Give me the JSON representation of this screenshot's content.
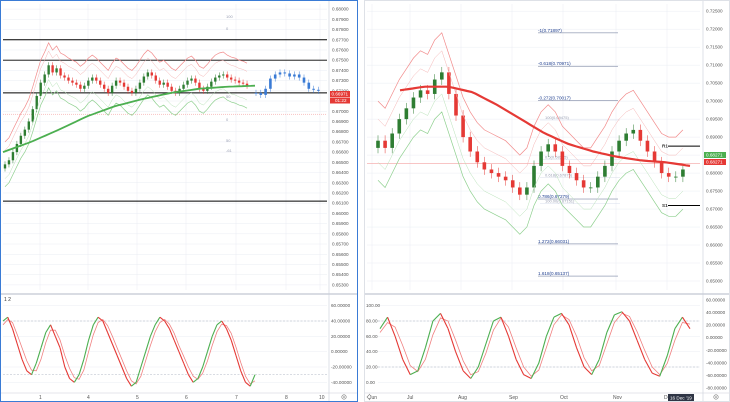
{
  "colors": {
    "candle_up": "#2e7d32",
    "candle_down": "#e53935",
    "candle_blue": "#3a7bd5",
    "ma_green": "#4caf50",
    "ma_red": "#e53935",
    "band_red": "#f28b8b",
    "band_green": "#8fd08f",
    "osc_k": "#4caf50",
    "osc_d": "#f08080",
    "fib": "#1f3f8f",
    "hline": "#000000",
    "grid": "#e4e8f0",
    "border_blue": "#3a7bd5"
  },
  "chart_data": [
    {
      "name": "left-price",
      "type": "line",
      "x_ticks": [
        "1",
        "4",
        "5",
        "6",
        "7",
        "8",
        "10"
      ],
      "y_ticks": [
        "0.68000",
        "0.67900",
        "0.67800",
        "0.67700",
        "0.67600",
        "0.67500",
        "0.67400",
        "0.67300",
        "0.67200",
        "0.67100",
        "0.67000",
        "0.66900",
        "0.66800",
        "0.66700",
        "0.66600",
        "0.66500",
        "0.66400",
        "0.66300",
        "0.66200",
        "0.66100",
        "0.66000",
        "0.65900",
        "0.65800",
        "0.65700",
        "0.65600",
        "0.65500",
        "0.65400",
        "0.65300"
      ],
      "ylim": [
        0.6525,
        0.6805
      ],
      "closes": [
        0.6648,
        0.6652,
        0.666,
        0.6668,
        0.6676,
        0.6682,
        0.669,
        0.6702,
        0.6715,
        0.6728,
        0.6736,
        0.6745,
        0.6738,
        0.6742,
        0.6735,
        0.6733,
        0.673,
        0.6728,
        0.6726,
        0.6722,
        0.6725,
        0.673,
        0.6733,
        0.673,
        0.6726,
        0.6722,
        0.6718,
        0.6725,
        0.673,
        0.6728,
        0.6724,
        0.672,
        0.6718,
        0.6722,
        0.6728,
        0.6734,
        0.6738,
        0.6735,
        0.673,
        0.6726,
        0.6728,
        0.6724,
        0.672,
        0.6718,
        0.6722,
        0.6726,
        0.673,
        0.6732,
        0.6728,
        0.6722,
        0.672,
        0.6724,
        0.6729,
        0.6733,
        0.6735,
        0.6736,
        0.6733,
        0.6731,
        0.673,
        0.6728,
        0.6727,
        0.6725
      ],
      "blue_closes": [
        0.6718,
        0.6716,
        0.6722,
        0.6732,
        0.6736,
        0.6738,
        0.6737,
        0.6734,
        0.6736,
        0.6733,
        0.6728,
        0.6722,
        0.6721,
        0.672
      ],
      "ma": [
        0.666,
        0.667,
        0.6682,
        0.6695,
        0.6705,
        0.6712,
        0.6718,
        0.6722,
        0.6724,
        0.6725
      ],
      "h_levels": [
        0.677,
        0.675,
        0.6718,
        0.6612
      ],
      "price_tag": "0.66971",
      "time_tag": "01:22",
      "faint_labels": [
        "100",
        "0",
        "50",
        "0",
        "50",
        "-61"
      ]
    },
    {
      "name": "right-price",
      "type": "line",
      "x_ticks": [
        "Jun",
        "Jul",
        "Aug",
        "Sep",
        "Oct",
        "Nov",
        "Dec"
      ],
      "date_tag": "16 Dec '19",
      "y_ticks": [
        "0.72500",
        "0.72000",
        "0.71500",
        "0.71000",
        "0.70500",
        "0.70000",
        "0.69500",
        "0.69000",
        "0.68500",
        "0.68000",
        "0.67500",
        "0.67000",
        "0.66500",
        "0.66000",
        "0.65500",
        "0.65000"
      ],
      "ylim": [
        0.6475,
        0.727
      ],
      "closes": [
        0.689,
        0.687,
        0.691,
        0.695,
        0.698,
        0.701,
        0.703,
        0.702,
        0.706,
        0.708,
        0.702,
        0.696,
        0.69,
        0.686,
        0.683,
        0.681,
        0.68,
        0.679,
        0.678,
        0.676,
        0.674,
        0.676,
        0.682,
        0.686,
        0.688,
        0.686,
        0.682,
        0.68,
        0.678,
        0.676,
        0.676,
        0.679,
        0.682,
        0.686,
        0.689,
        0.691,
        0.692,
        0.689,
        0.686,
        0.683,
        0.68,
        0.679,
        0.679,
        0.681
      ],
      "ma": [
        0.703,
        0.704,
        0.704,
        0.7025,
        0.699,
        0.695,
        0.691,
        0.688,
        0.686,
        0.6845,
        0.6835,
        0.683,
        0.682
      ],
      "fib_levels": [
        {
          "label": "-1(0.71897)",
          "value": 0.71897
        },
        {
          "label": "-0.618(0.70971)",
          "value": 0.70971
        },
        {
          "label": "-0.272(0.70017)",
          "value": 0.70017
        },
        {
          "label": "0.786(0.67279)",
          "value": 0.67279
        },
        {
          "label": "1.272(0.66031)",
          "value": 0.66031
        },
        {
          "label": "1.618(0.65137)",
          "value": 0.65137
        }
      ],
      "r1_value": 0.6875,
      "s1_value": 0.671,
      "r1_label": "R1",
      "s1_label": "S1",
      "price_tag": "0.68271",
      "time_tag": "0.68271",
      "faint_labels": [
        "100(0.69475)",
        "0.5(0.68375)",
        "0.618(0.67875)",
        "100.00(0.67151)"
      ]
    },
    {
      "name": "left-oscillator",
      "type": "line",
      "legend": "1  2",
      "y_ticks": [
        "60.00000",
        "40.00000",
        "20.00000",
        "0.00000",
        "-20.00000",
        "-40.00000"
      ],
      "ylim": [
        -50,
        70
      ],
      "k": [
        40,
        45,
        30,
        10,
        -10,
        -25,
        -30,
        -15,
        5,
        25,
        35,
        20,
        5,
        -20,
        -35,
        -40,
        -30,
        -10,
        15,
        35,
        45,
        40,
        25,
        10,
        -5,
        -20,
        -35,
        -45,
        -40,
        -20,
        0,
        20,
        35,
        45,
        40,
        30,
        15,
        0,
        -15,
        -30,
        -40,
        -35,
        -20,
        0,
        20,
        35,
        40,
        30,
        15,
        -5,
        -25,
        -40,
        -45,
        -30
      ],
      "d": [
        35,
        42,
        38,
        22,
        5,
        -12,
        -24,
        -25,
        -10,
        12,
        28,
        28,
        15,
        -5,
        -22,
        -34,
        -36,
        -24,
        0,
        22,
        38,
        42,
        34,
        20,
        5,
        -10,
        -25,
        -38,
        -42,
        -32,
        -12,
        8,
        26,
        38,
        42,
        36,
        24,
        8,
        -6,
        -20,
        -32,
        -36,
        -28,
        -12,
        8,
        26,
        36,
        34,
        24,
        6,
        -14,
        -32,
        -42,
        -38
      ]
    },
    {
      "name": "right-oscillator",
      "type": "line",
      "y_ticks_left": [
        "100.00",
        "80.00",
        "60.00",
        "40.00",
        "20.00",
        "0.00"
      ],
      "y_ticks_right": [
        "60.00000",
        "40.00000",
        "20.00000",
        "0.00000",
        "-20.00000",
        "-40.00000",
        "-60.00000",
        "-80.00000"
      ],
      "ylim": [
        -10,
        110
      ],
      "k": [
        70,
        85,
        60,
        30,
        10,
        15,
        45,
        80,
        90,
        70,
        40,
        15,
        5,
        20,
        50,
        80,
        85,
        60,
        30,
        10,
        5,
        25,
        60,
        85,
        90,
        75,
        45,
        20,
        10,
        30,
        65,
        88,
        92,
        80,
        55,
        30,
        12,
        8,
        35,
        70,
        85,
        70
      ],
      "d": [
        65,
        78,
        72,
        48,
        22,
        14,
        30,
        62,
        84,
        80,
        55,
        28,
        10,
        14,
        38,
        68,
        84,
        72,
        45,
        20,
        8,
        16,
        45,
        75,
        88,
        82,
        60,
        32,
        15,
        22,
        50,
        78,
        90,
        86,
        66,
        42,
        20,
        10,
        25,
        55,
        78,
        76
      ]
    }
  ]
}
